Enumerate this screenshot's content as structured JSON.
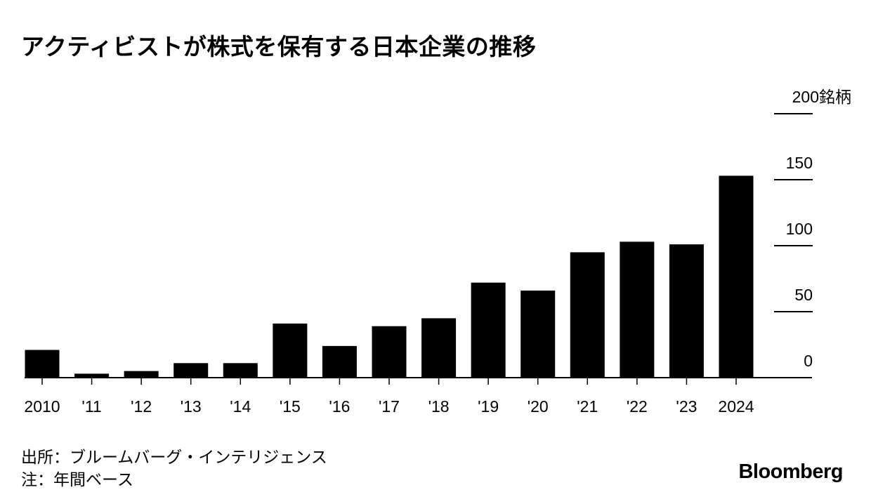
{
  "chart_data": {
    "type": "bar",
    "title": "アクティビストが株式を保有する日本企業の推移",
    "categories": [
      "2010",
      "'11",
      "'12",
      "'13",
      "'14",
      "'15",
      "'16",
      "'17",
      "'18",
      "'19",
      "'20",
      "'21",
      "'22",
      "'23",
      "2024"
    ],
    "values": [
      21,
      3,
      5,
      11,
      11,
      41,
      24,
      39,
      45,
      72,
      66,
      95,
      103,
      101,
      153
    ],
    "ylim": [
      0,
      200
    ],
    "yticks": [
      0,
      50,
      100,
      150,
      200
    ],
    "ytick_labels": [
      "0",
      "50",
      "100",
      "150",
      "200銘柄"
    ],
    "axis_position": "right",
    "grid": false,
    "bar_color": "#000000"
  },
  "source": "出所：ブルームバーグ・インテリジェンス",
  "note": "注：年間ベース",
  "logo": "Bloomberg"
}
